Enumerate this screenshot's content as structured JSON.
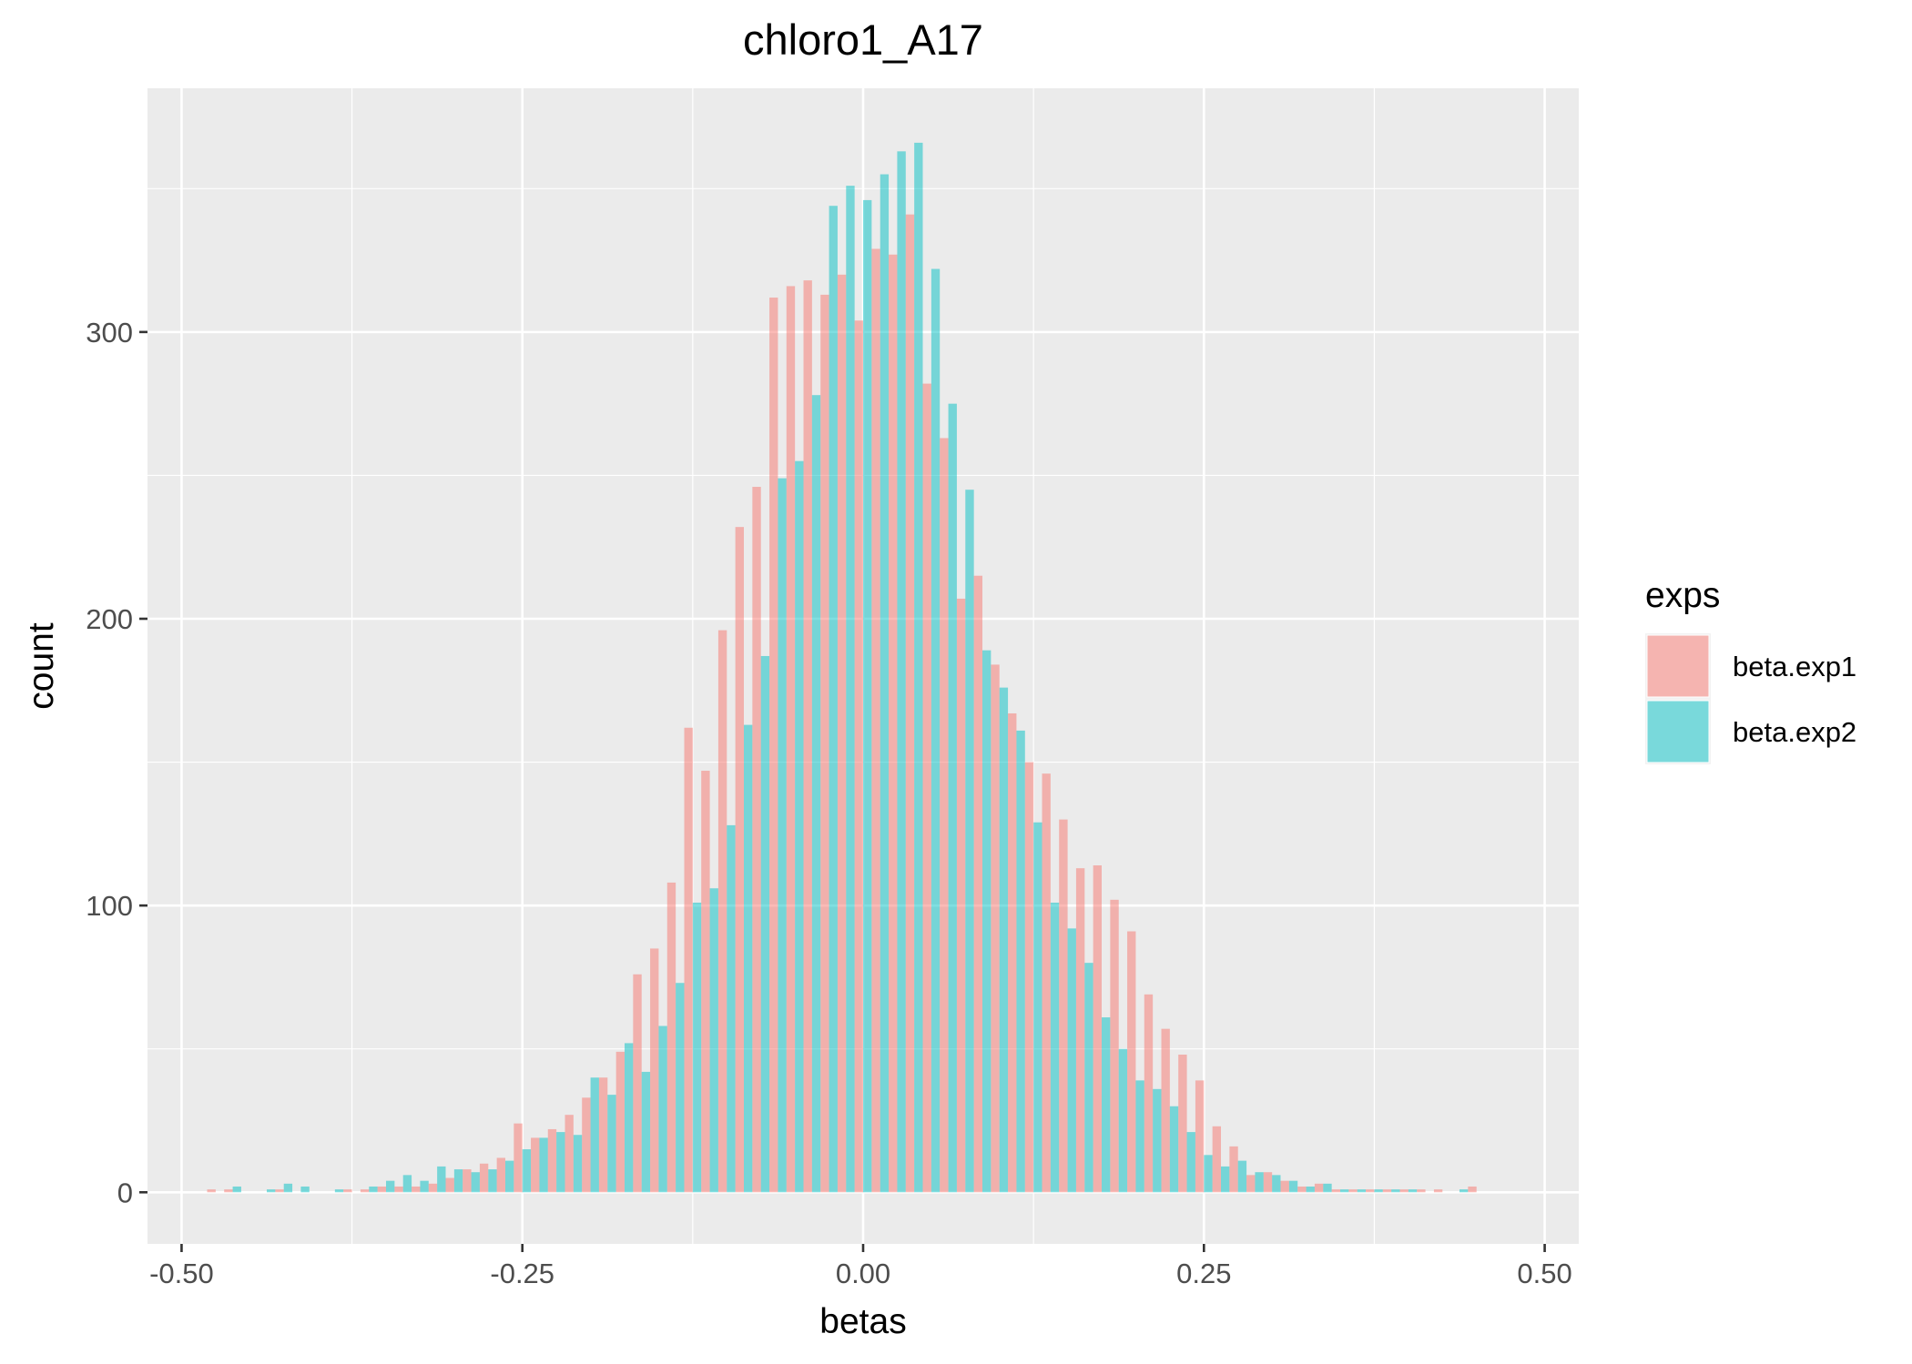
{
  "chart_data": {
    "type": "bar",
    "title": "chloro1_A17",
    "xlabel": "betas",
    "ylabel": "count",
    "xlim": [
      -0.525,
      0.525
    ],
    "ylim": [
      -18,
      385
    ],
    "x_ticks": [
      -0.5,
      -0.25,
      0.0,
      0.25,
      0.5
    ],
    "x_tick_labels": [
      "-0.50",
      "-0.25",
      "0.00",
      "0.25",
      "0.50"
    ],
    "y_ticks": [
      0,
      100,
      200,
      300
    ],
    "y_tick_labels": [
      "0",
      "100",
      "200",
      "300"
    ],
    "grid": true,
    "bin_width": 0.0125,
    "bin_centers": [
      -0.475,
      -0.4625,
      -0.45,
      -0.4375,
      -0.425,
      -0.4125,
      -0.4,
      -0.3875,
      -0.375,
      -0.3625,
      -0.35,
      -0.3375,
      -0.325,
      -0.3125,
      -0.3,
      -0.2875,
      -0.275,
      -0.2625,
      -0.25,
      -0.2375,
      -0.225,
      -0.2125,
      -0.2,
      -0.1875,
      -0.175,
      -0.1625,
      -0.15,
      -0.1375,
      -0.125,
      -0.1125,
      -0.1,
      -0.0875,
      -0.075,
      -0.0625,
      -0.05,
      -0.0375,
      -0.025,
      -0.0125,
      0.0,
      0.0125,
      0.025,
      0.0375,
      0.05,
      0.0625,
      0.075,
      0.0875,
      0.1,
      0.1125,
      0.125,
      0.1375,
      0.15,
      0.1625,
      0.175,
      0.1875,
      0.2,
      0.2125,
      0.225,
      0.2375,
      0.25,
      0.2625,
      0.275,
      0.2875,
      0.3,
      0.3125,
      0.325,
      0.3375,
      0.35,
      0.3625,
      0.375,
      0.3875,
      0.4,
      0.4125,
      0.425,
      0.4375,
      0.45,
      0.4625
    ],
    "series": [
      {
        "name": "beta.exp1",
        "color": "#F8766D",
        "values": [
          1,
          1,
          0,
          0,
          1,
          0,
          0,
          0,
          1,
          1,
          2,
          2,
          2,
          3,
          5,
          8,
          10,
          12,
          24,
          19,
          22,
          27,
          33,
          40,
          49,
          76,
          85,
          108,
          162,
          147,
          196,
          232,
          246,
          312,
          316,
          318,
          313,
          320,
          304,
          329,
          327,
          341,
          282,
          263,
          207,
          215,
          184,
          167,
          150,
          146,
          130,
          113,
          114,
          102,
          91,
          69,
          57,
          48,
          39,
          23,
          16,
          6,
          7,
          4,
          2,
          3,
          1,
          1,
          1,
          1,
          1,
          1,
          1,
          0,
          2,
          0
        ]
      },
      {
        "name": "beta.exp2",
        "color": "#00BFC4",
        "values": [
          0,
          2,
          0,
          1,
          3,
          2,
          0,
          1,
          0,
          2,
          4,
          6,
          4,
          9,
          8,
          7,
          8,
          11,
          15,
          19,
          21,
          20,
          40,
          34,
          52,
          42,
          58,
          73,
          101,
          106,
          128,
          163,
          187,
          249,
          255,
          278,
          344,
          351,
          346,
          355,
          363,
          366,
          322,
          275,
          245,
          189,
          176,
          161,
          129,
          101,
          92,
          80,
          61,
          50,
          39,
          36,
          30,
          21,
          13,
          9,
          11,
          7,
          6,
          4,
          2,
          3,
          1,
          1,
          1,
          1,
          1,
          0,
          0,
          1,
          0,
          0
        ]
      }
    ],
    "legend": {
      "title": "exps",
      "position": "right",
      "entries": [
        {
          "label": "beta.exp1",
          "color": "#F8766D"
        },
        {
          "label": "beta.exp2",
          "color": "#00BFC4"
        }
      ]
    },
    "panel_background": "#EBEBEB",
    "grid_color": "#FFFFFF"
  }
}
